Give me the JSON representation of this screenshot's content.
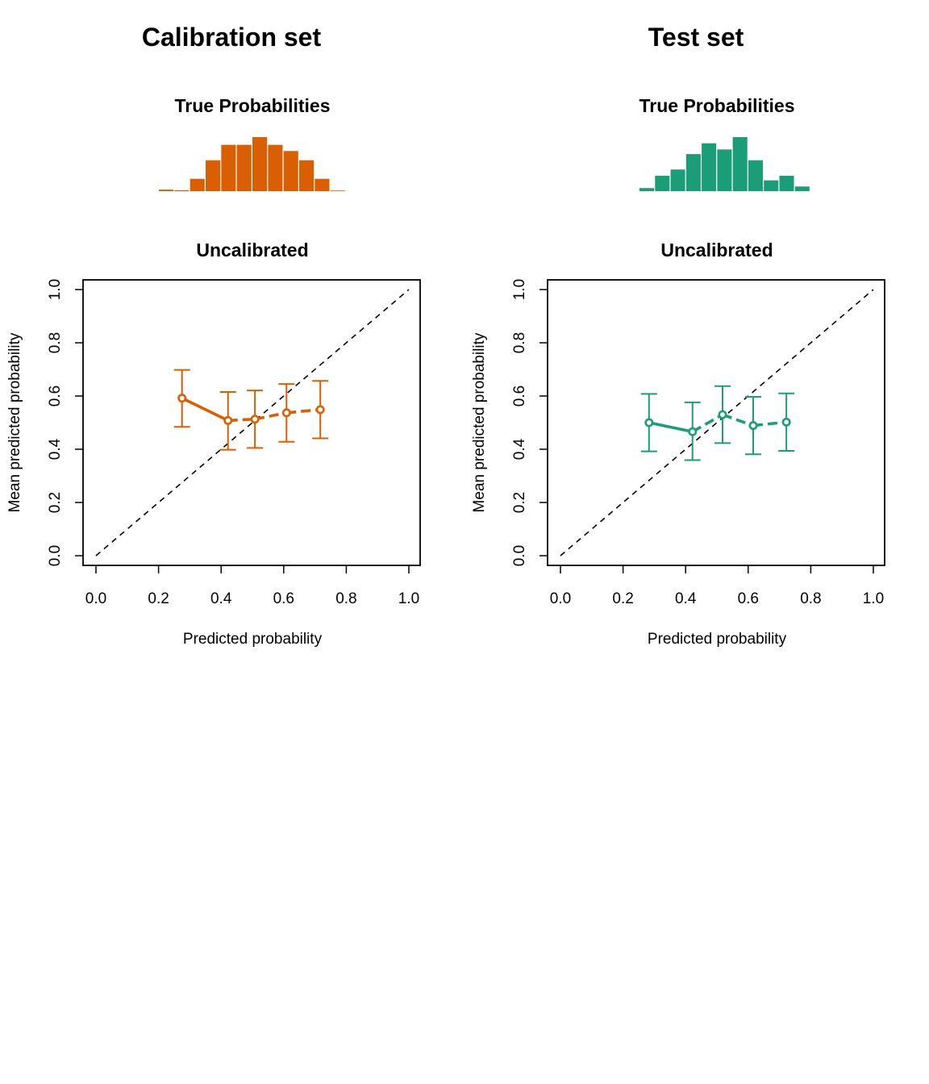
{
  "colors": {
    "calibration": "#D95F02",
    "test": "#1B9E77",
    "reference_line": "#000000"
  },
  "chart_data": [
    {
      "type": "bar",
      "panel": "calibration",
      "set_title": "Calibration set",
      "title": "True Probabilities",
      "values": [
        0.5,
        0.3,
        4,
        10,
        15,
        15,
        17.5,
        15,
        13,
        10,
        4,
        0.2
      ]
    },
    {
      "type": "line",
      "panel": "calibration",
      "title": "Uncalibrated",
      "xlabel": "Predicted probability",
      "ylabel": "Mean predicted probability",
      "xlim": [
        0,
        1
      ],
      "ylim": [
        0,
        1
      ],
      "xticks": [
        "0.0",
        "0.2",
        "0.4",
        "0.6",
        "0.8",
        "1.0"
      ],
      "yticks": [
        "0.0",
        "0.2",
        "0.4",
        "0.6",
        "0.8",
        "1.0"
      ],
      "reference": [
        [
          0,
          0
        ],
        [
          1,
          1
        ]
      ],
      "series": [
        {
          "x": [
            0.275,
            0.422,
            0.508,
            0.609,
            0.717
          ],
          "y": [
            0.592,
            0.508,
            0.513,
            0.537,
            0.549
          ],
          "lower": [
            0.484,
            0.398,
            0.405,
            0.428,
            0.441
          ],
          "upper": [
            0.698,
            0.615,
            0.621,
            0.645,
            0.657
          ]
        }
      ]
    },
    {
      "type": "bar",
      "panel": "test",
      "set_title": "Test set",
      "title": "True Probabilities",
      "values": [
        1,
        5,
        7,
        12,
        15.5,
        13.5,
        17.5,
        10,
        3.5,
        5,
        1.5
      ]
    },
    {
      "type": "line",
      "panel": "test",
      "title": "Uncalibrated",
      "xlabel": "Predicted probability",
      "ylabel": "Mean predicted probability",
      "xlim": [
        0,
        1
      ],
      "ylim": [
        0,
        1
      ],
      "xticks": [
        "0.0",
        "0.2",
        "0.4",
        "0.6",
        "0.8",
        "1.0"
      ],
      "yticks": [
        "0.0",
        "0.2",
        "0.4",
        "0.6",
        "0.8",
        "1.0"
      ],
      "reference": [
        [
          0,
          0
        ],
        [
          1,
          1
        ]
      ],
      "series": [
        {
          "x": [
            0.283,
            0.422,
            0.518,
            0.616,
            0.722
          ],
          "y": [
            0.5,
            0.466,
            0.53,
            0.489,
            0.502
          ],
          "lower": [
            0.392,
            0.359,
            0.423,
            0.381,
            0.394
          ],
          "upper": [
            0.608,
            0.576,
            0.637,
            0.597,
            0.61
          ]
        }
      ]
    }
  ]
}
